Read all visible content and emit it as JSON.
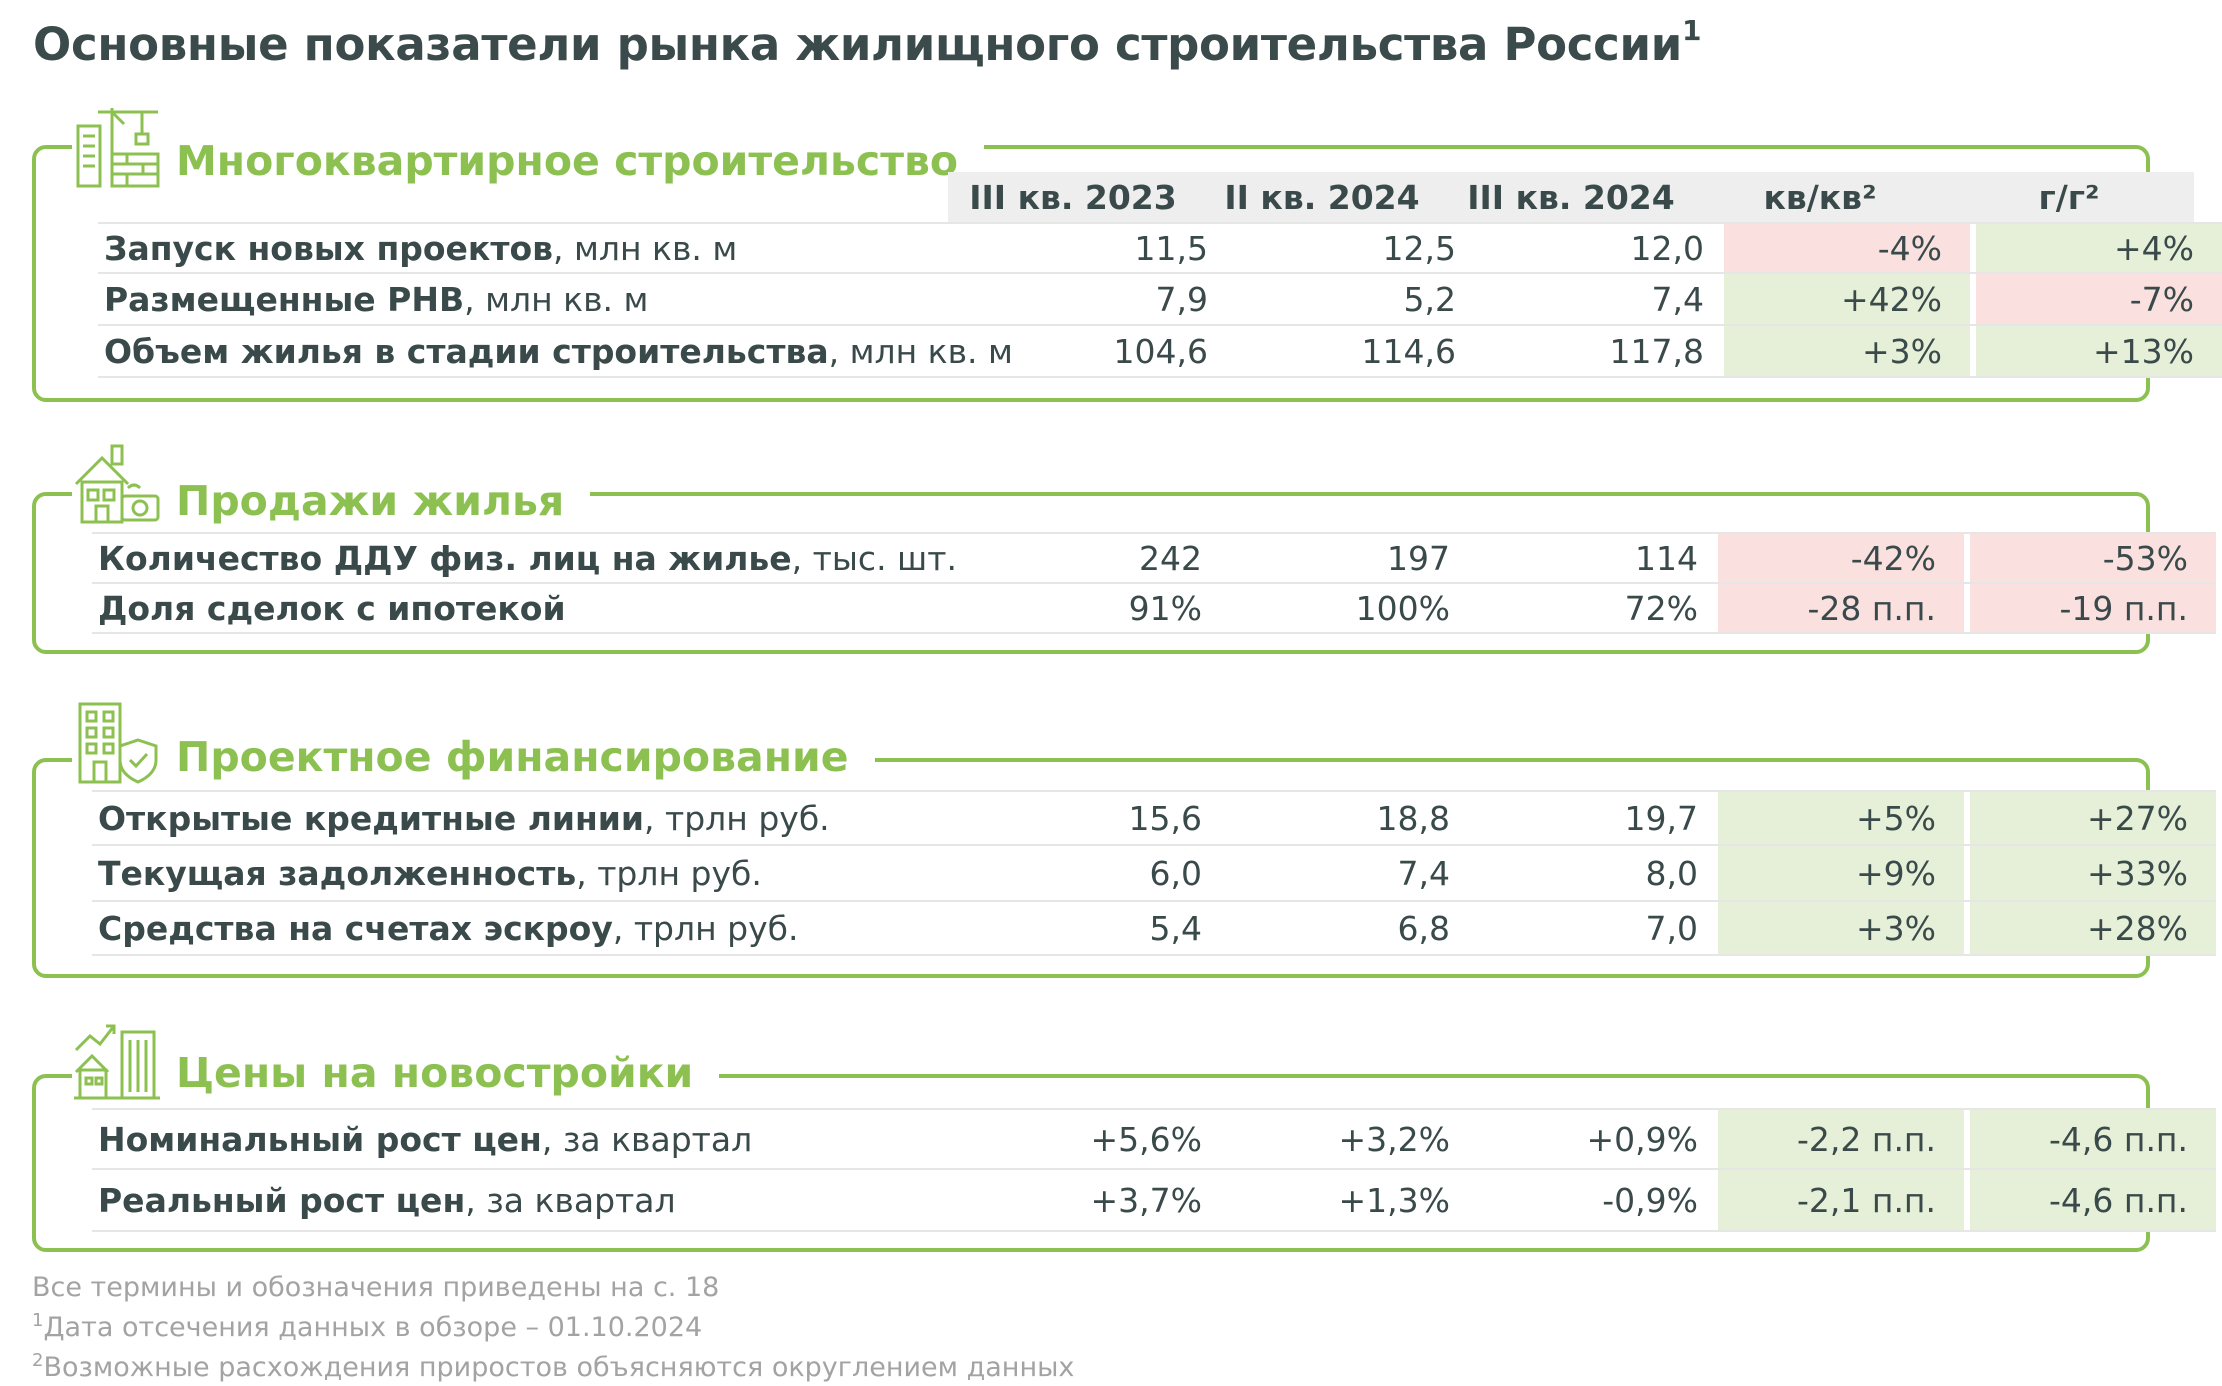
{
  "title": "Основные показатели рынка жилищного строительства России",
  "title_sup": "1",
  "columns": [
    "III кв. 2023",
    "II кв. 2024",
    "III кв. 2024",
    "кв/кв²",
    "г/г²"
  ],
  "sections": [
    {
      "title": "Многоквартирное строительство",
      "icon": "construction-building-icon",
      "rows": [
        {
          "label_bold": "Запуск новых проектов",
          "label_unit": ", млн кв. м",
          "v1": "11,5",
          "v2": "12,5",
          "v3": "12,0",
          "qoq": "-4%",
          "yoy": "+4%"
        },
        {
          "label_bold": "Размещенные РНВ",
          "label_unit": ", млн кв. м",
          "v1": "7,9",
          "v2": "5,2",
          "v3": "7,4",
          "qoq": "+42%",
          "yoy": "-7%"
        },
        {
          "label_bold": "Объем жилья в стадии строительства",
          "label_unit": ", млн кв. м",
          "v1": "104,6",
          "v2": "114,6",
          "v3": "117,8",
          "qoq": "+3%",
          "yoy": "+13%"
        }
      ]
    },
    {
      "title": "Продажи жилья",
      "icon": "house-sale-icon",
      "rows": [
        {
          "label_bold": "Количество ДДУ физ. лиц на жилье",
          "label_unit": ", тыс. шт.",
          "v1": "242",
          "v2": "197",
          "v3": "114",
          "qoq": "-42%",
          "yoy": "-53%"
        },
        {
          "label_bold": "Доля сделок с ипотекой",
          "label_unit": "",
          "v1": "91%",
          "v2": "100%",
          "v3": "72%",
          "qoq": "-28 п.п.",
          "yoy": "-19 п.п."
        }
      ]
    },
    {
      "title": "Проектное финансирование",
      "icon": "building-shield-icon",
      "rows": [
        {
          "label_bold": "Открытые кредитные линии",
          "label_unit": ", трлн руб.",
          "v1": "15,6",
          "v2": "18,8",
          "v3": "19,7",
          "qoq": "+5%",
          "yoy": "+27%"
        },
        {
          "label_bold": "Текущая задолженность",
          "label_unit": ", трлн руб.",
          "v1": "6,0",
          "v2": "7,4",
          "v3": "8,0",
          "qoq": "+9%",
          "yoy": "+33%"
        },
        {
          "label_bold": "Средства на счетах эскроу",
          "label_unit": ", трлн руб.",
          "v1": "5,4",
          "v2": "6,8",
          "v3": "7,0",
          "qoq": "+3%",
          "yoy": "+28%"
        }
      ]
    },
    {
      "title": "Цены на новостройки",
      "icon": "price-growth-buildings-icon",
      "rows": [
        {
          "label_bold": "Номинальный рост цен",
          "label_unit": ", за квартал",
          "v1": "+5,6%",
          "v2": "+3,2%",
          "v3": "+0,9%",
          "qoq": "-2,2 п.п.",
          "yoy": "-4,6 п.п."
        },
        {
          "label_bold": "Реальный рост цен",
          "label_unit": ", за квартал",
          "v1": "+3,7%",
          "v2": "+1,3%",
          "v3": "-0,9%",
          "qoq": "-2,1 п.п.",
          "yoy": "-4,6 п.п."
        }
      ]
    }
  ],
  "footnotes": [
    {
      "sup": "",
      "text": "Все термины и обозначения приведены на с. 18"
    },
    {
      "sup": "1",
      "text": "Дата отсечения данных в обзоре – 01.10.2024"
    },
    {
      "sup": "2",
      "text": "Возможные расхождения приростов объясняются округлением данных"
    }
  ],
  "colors": {
    "accent_green": "#8cc152",
    "negative_bg": "#fbe0e0",
    "positive_bg": "#e6f0d8",
    "text": "#3a4a4a",
    "muted": "#a3a3a3"
  }
}
